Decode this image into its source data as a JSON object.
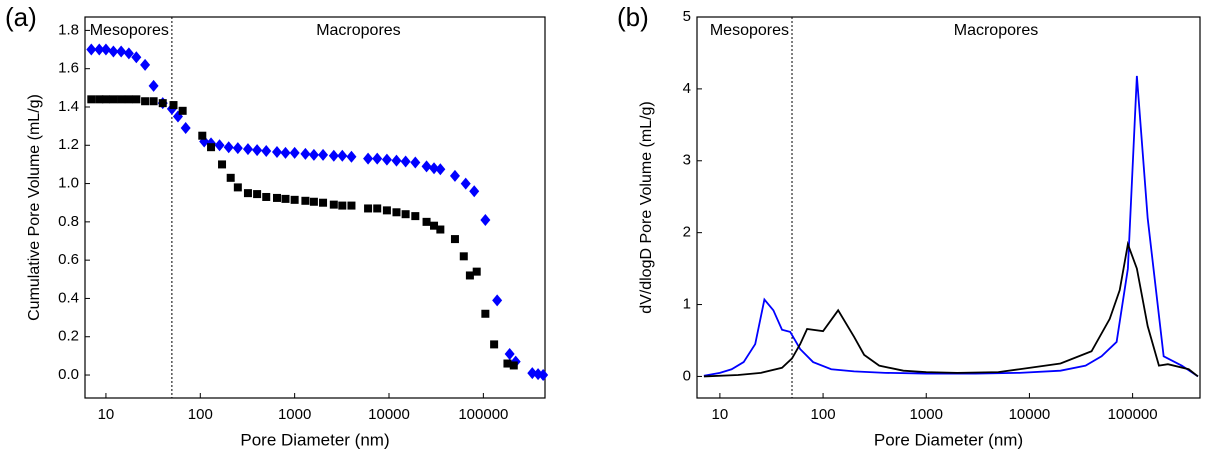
{
  "chart_data": [
    {
      "type": "scatter",
      "label": "(a)",
      "x_label": "Pore Diameter (nm)",
      "y_label": "Cumulative Pore Volume (mL/g)",
      "xscale": "log",
      "xlim": [
        6,
        450000
      ],
      "xticks": [
        10,
        100,
        1000,
        10000,
        100000
      ],
      "ylim": [
        -0.12,
        1.87
      ],
      "yticks": [
        {
          "value": 0,
          "label": "0.0"
        },
        0.2,
        0.4,
        0.6,
        0.8,
        {
          "value": 1,
          "label": "1.0"
        },
        1.2,
        1.4,
        1.6,
        1.8
      ],
      "divider": 50,
      "annotations": [
        "Mesopores",
        "Macropores"
      ],
      "series": [
        {
          "color": "#0000ff",
          "marker": "diamond",
          "x": [
            7,
            8.5,
            10,
            12,
            14.5,
            17.5,
            21,
            26,
            32,
            40,
            50,
            58,
            70,
            110,
            130,
            160,
            200,
            250,
            320,
            400,
            500,
            650,
            800,
            1000,
            1300,
            1600,
            2000,
            2600,
            3200,
            4000,
            6000,
            7500,
            9500,
            12000,
            15000,
            19000,
            25000,
            30000,
            35000,
            50000,
            65000,
            80000,
            105000,
            140000,
            190000,
            220000,
            330000,
            380000,
            430000
          ],
          "values": [
            1.7,
            1.7,
            1.7,
            1.69,
            1.69,
            1.68,
            1.66,
            1.62,
            1.51,
            1.42,
            1.39,
            1.35,
            1.29,
            1.22,
            1.21,
            1.2,
            1.19,
            1.185,
            1.18,
            1.175,
            1.17,
            1.165,
            1.16,
            1.16,
            1.155,
            1.15,
            1.15,
            1.145,
            1.145,
            1.14,
            1.13,
            1.13,
            1.125,
            1.12,
            1.115,
            1.11,
            1.09,
            1.08,
            1.075,
            1.04,
            1.0,
            0.96,
            0.81,
            0.39,
            0.11,
            0.07,
            0.01,
            0.005,
            0
          ]
        },
        {
          "color": "#000000",
          "marker": "square",
          "x": [
            7,
            8.5,
            10,
            12,
            14.5,
            17.5,
            21,
            26,
            32,
            40,
            52,
            65,
            105,
            130,
            170,
            210,
            250,
            320,
            400,
            500,
            650,
            800,
            1000,
            1300,
            1600,
            2000,
            2600,
            3200,
            4000,
            6000,
            7500,
            9500,
            12000,
            15000,
            19000,
            25000,
            30000,
            35000,
            50000,
            62000,
            72000,
            85000,
            105000,
            130000,
            180000,
            210000
          ],
          "values": [
            1.44,
            1.44,
            1.44,
            1.44,
            1.44,
            1.44,
            1.44,
            1.43,
            1.43,
            1.42,
            1.41,
            1.38,
            1.25,
            1.19,
            1.1,
            1.03,
            0.98,
            0.95,
            0.945,
            0.93,
            0.925,
            0.92,
            0.915,
            0.91,
            0.905,
            0.9,
            0.89,
            0.885,
            0.885,
            0.87,
            0.87,
            0.86,
            0.85,
            0.84,
            0.83,
            0.8,
            0.78,
            0.76,
            0.71,
            0.62,
            0.52,
            0.54,
            0.32,
            0.16,
            0.06,
            0.05
          ]
        }
      ]
    },
    {
      "type": "line",
      "label": "(b)",
      "x_label": "Pore Diameter (nm)",
      "y_label": "dV/dlogD Pore Volume (mL/g)",
      "xscale": "log",
      "xlim": [
        6,
        450000
      ],
      "xticks": [
        10,
        100,
        1000,
        10000,
        100000
      ],
      "ylim": [
        -0.3,
        5
      ],
      "yticks": [
        0,
        1,
        2,
        3,
        4,
        5
      ],
      "divider": 50,
      "annotations": [
        "Mesopores",
        "Macropores"
      ],
      "series": [
        {
          "color": "#0000ff",
          "x": [
            7,
            10,
            13,
            17,
            22,
            27,
            33,
            40,
            48,
            60,
            80,
            120,
            200,
            400,
            1000,
            3000,
            8000,
            20000,
            35000,
            50000,
            70000,
            90000,
            110000,
            140000,
            200000,
            300000,
            430000
          ],
          "values": [
            0.01,
            0.05,
            0.1,
            0.2,
            0.45,
            1.07,
            0.92,
            0.65,
            0.62,
            0.38,
            0.2,
            0.1,
            0.07,
            0.05,
            0.04,
            0.04,
            0.05,
            0.08,
            0.15,
            0.28,
            0.48,
            1.5,
            4.18,
            2.2,
            0.28,
            0.15,
            0
          ]
        },
        {
          "color": "#000000",
          "x": [
            7,
            15,
            25,
            40,
            50,
            60,
            70,
            100,
            140,
            200,
            250,
            350,
            600,
            1000,
            2000,
            5000,
            8000,
            20000,
            40000,
            60000,
            75000,
            90000,
            110000,
            140000,
            180000,
            220000,
            350000,
            430000
          ],
          "values": [
            0,
            0.02,
            0.05,
            0.12,
            0.25,
            0.45,
            0.66,
            0.63,
            0.92,
            0.55,
            0.3,
            0.15,
            0.08,
            0.06,
            0.05,
            0.06,
            0.1,
            0.18,
            0.35,
            0.8,
            1.2,
            1.84,
            1.5,
            0.7,
            0.15,
            0.17,
            0.1,
            0
          ]
        }
      ]
    }
  ]
}
